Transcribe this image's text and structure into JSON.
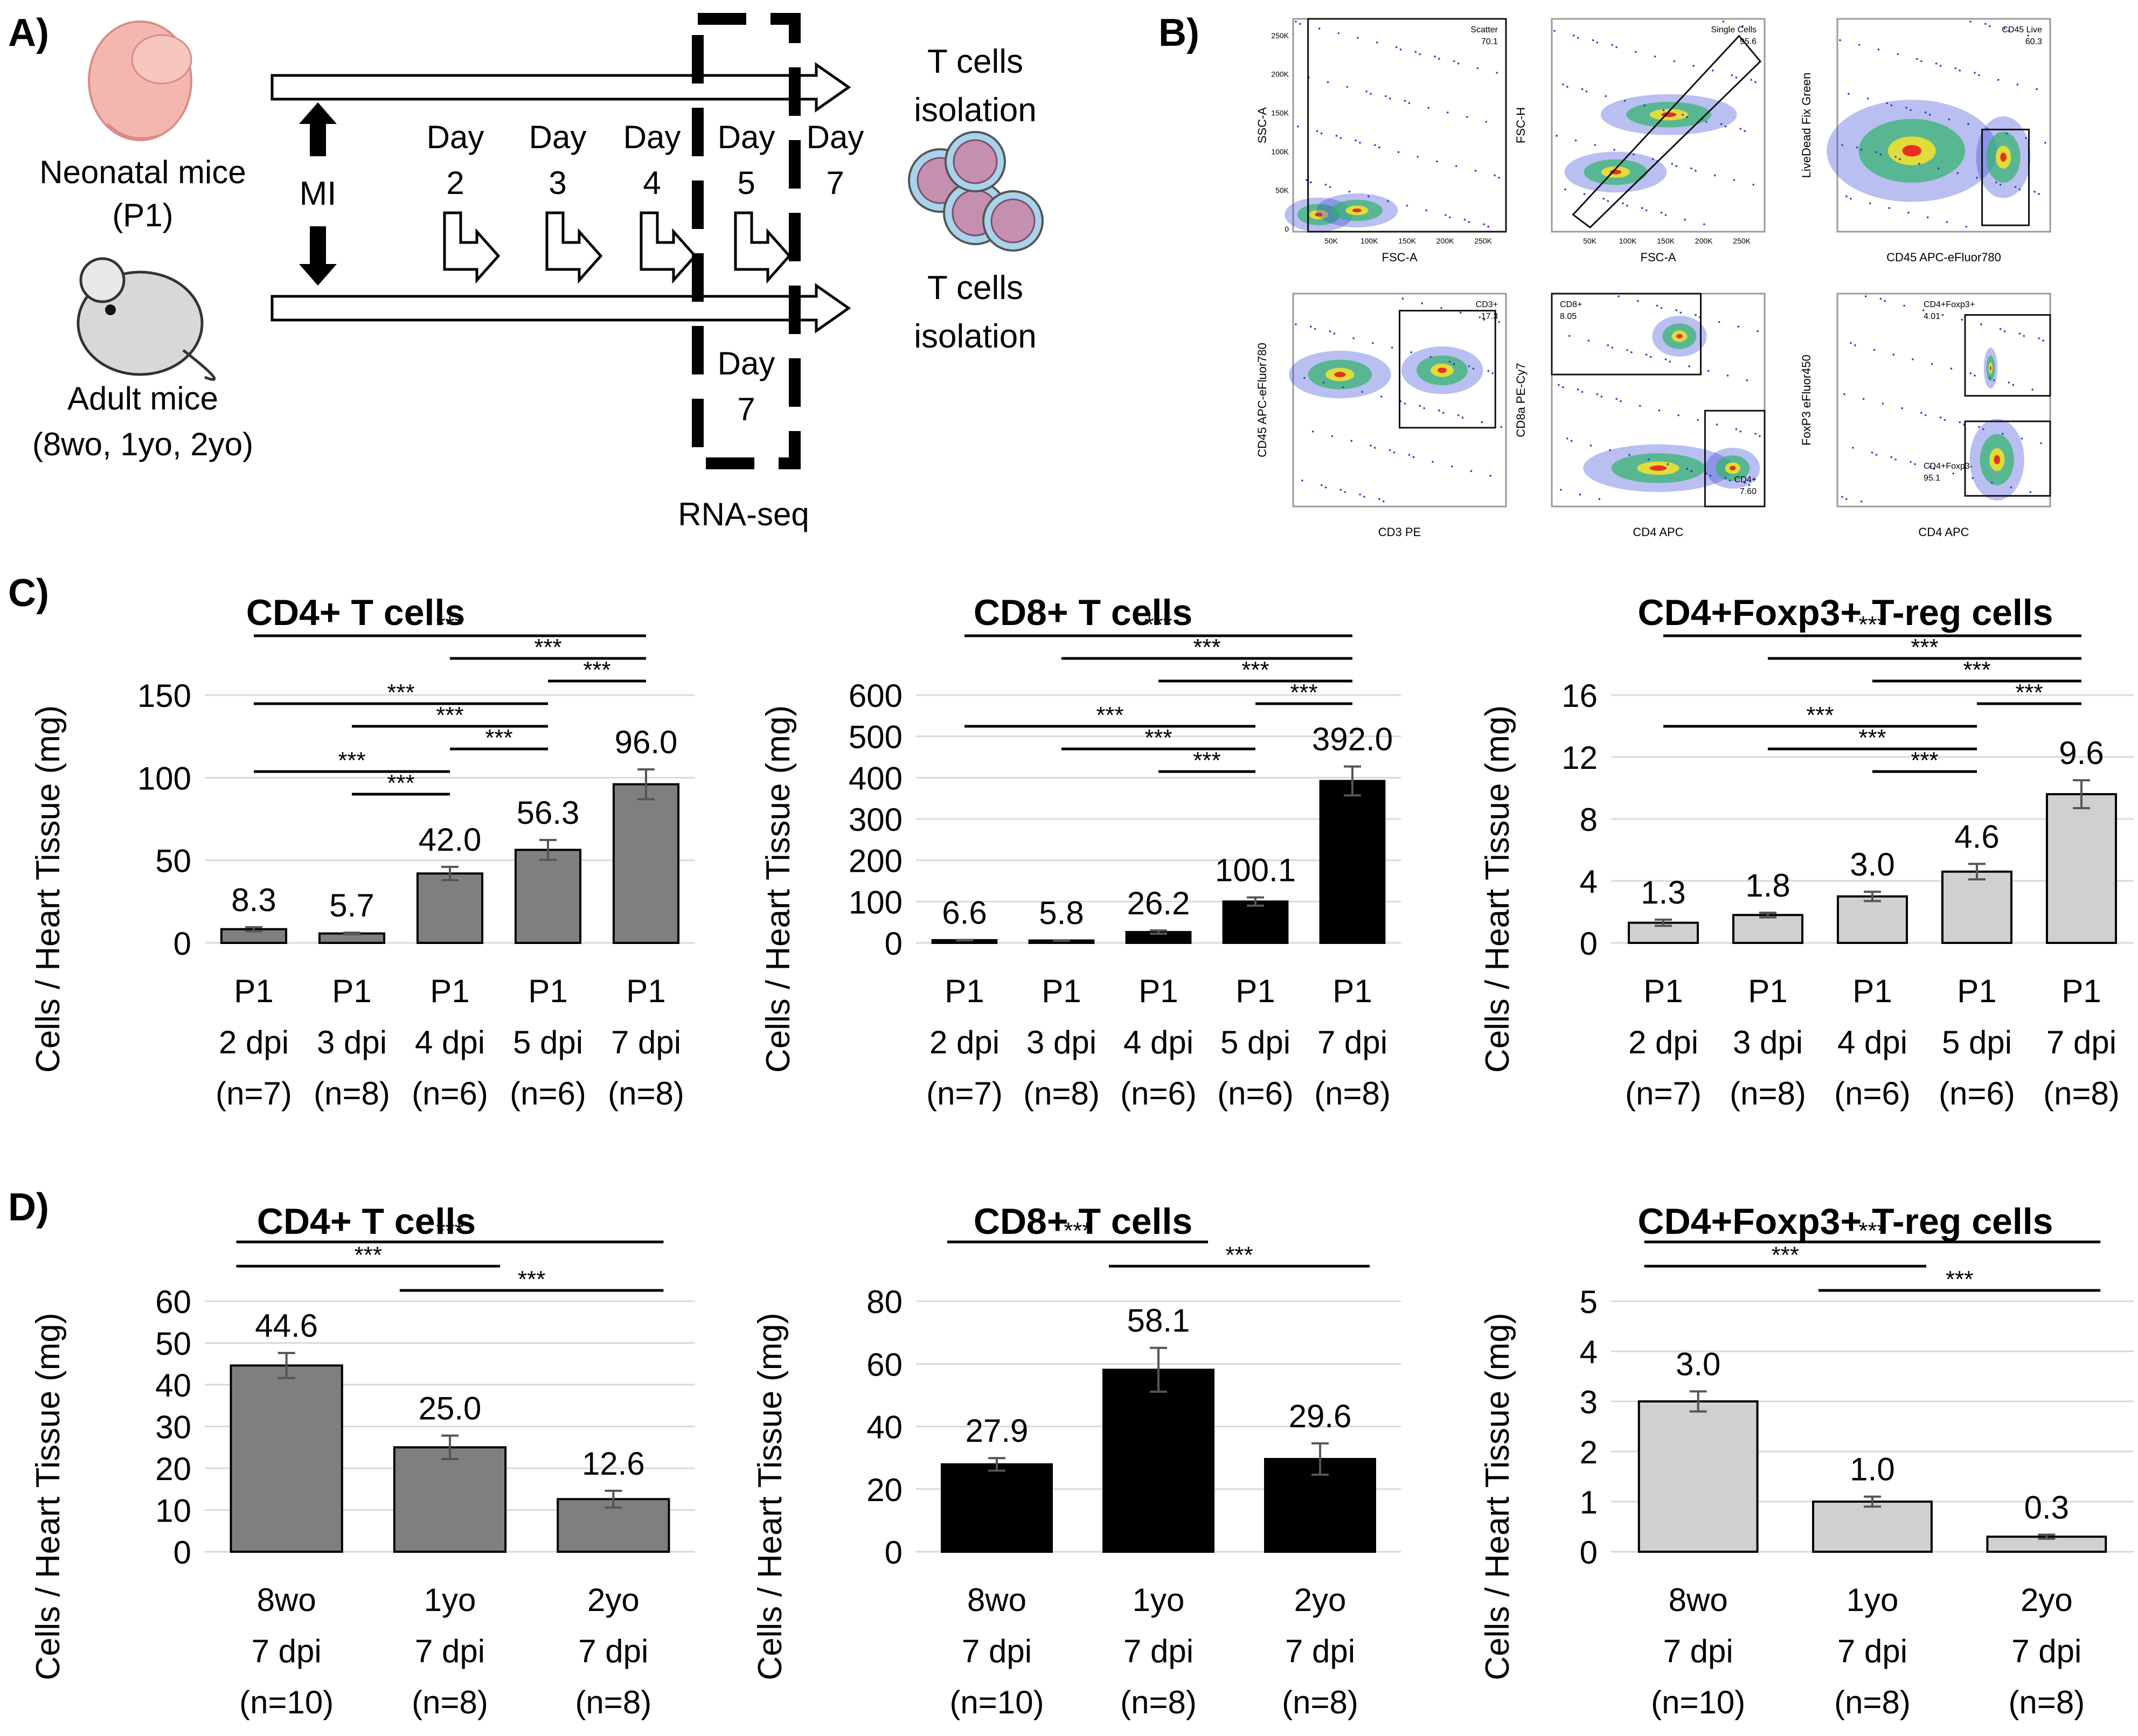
{
  "panels": {
    "a": "A)",
    "b": "B)",
    "c": "C)",
    "d": "D)"
  },
  "timeline": {
    "neonatal_label": "Neonatal mice",
    "neonatal_sub": "(P1)",
    "adult_label": "Adult mice",
    "adult_sub": "(8wo, 1yo, 2yo)",
    "mi": "MI",
    "day_word": "Day",
    "days_top": [
      "2",
      "3",
      "4",
      "5",
      "7"
    ],
    "day_bottom": "7",
    "isolation_top": [
      "T cells",
      "isolation"
    ],
    "isolation_bottom": [
      "T cells",
      "isolation"
    ],
    "rna_seq": "RNA-seq"
  },
  "flow": {
    "plots": [
      {
        "xlabel": "FSC-A",
        "ylabel": "SSC-A",
        "gate_name": "Scatter",
        "gate_value": "70.1",
        "xticks": [
          "50K",
          "100K",
          "150K",
          "200K",
          "250K"
        ],
        "yticks": [
          "0",
          "50K",
          "100K",
          "150K",
          "200K",
          "250K"
        ]
      },
      {
        "xlabel": "FSC-A",
        "ylabel": "FSC-H",
        "gate_name": "Single Cells",
        "gate_value": "95.6",
        "xticks": [
          "50K",
          "100K",
          "150K",
          "200K",
          "250K"
        ],
        "yticks": []
      },
      {
        "xlabel": "CD45 APC-eFluor780",
        "ylabel": "LiveDead Fix Green",
        "gate_name": "CD45 Live",
        "gate_value": "60.3",
        "xticks": [],
        "yticks": []
      },
      {
        "xlabel": "CD3 PE",
        "ylabel": "CD45 APC-eFluor780",
        "gate_name": "CD3+",
        "gate_value": "17.3",
        "xticks": [],
        "yticks": []
      },
      {
        "xlabel": "CD4 APC",
        "ylabel": "CD8a PE-Cy7",
        "gate_name": "CD8+",
        "gate_value": "8.05",
        "gate2_name": "CD4+",
        "gate2_value": "7.60",
        "xticks": [],
        "yticks": []
      },
      {
        "xlabel": "CD4 APC",
        "ylabel": "FoxP3 eFluor450",
        "gate_name": "CD4+Foxp3+",
        "gate_value": "4.01",
        "gate2_name": "CD4+Foxp3-",
        "gate2_value": "95.1",
        "xticks": [],
        "yticks": []
      }
    ]
  },
  "chart_data": [
    {
      "type": "bar",
      "title": "CD4+ T cells",
      "ylabel": "Cells / Heart Tissue (mg)",
      "ylim": [
        0,
        150
      ],
      "yticks": [
        0,
        50,
        100,
        150
      ],
      "color": "#7f7f7f",
      "errors": [
        1.2,
        0.5,
        4.0,
        6.0,
        9.0
      ],
      "categories": [
        [
          "P1",
          "2 dpi",
          "(n=7)"
        ],
        [
          "P1",
          "3 dpi",
          "(n=8)"
        ],
        [
          "P1",
          "4 dpi",
          "(n=6)"
        ],
        [
          "P1",
          "5 dpi",
          "(n=6)"
        ],
        [
          "P1",
          "7 dpi",
          "(n=8)"
        ]
      ],
      "values": [
        8.3,
        5.7,
        42.0,
        56.3,
        96.0
      ],
      "value_labels": [
        "8.3",
        "5.7",
        "42.0",
        "56.3",
        "96.0"
      ],
      "significance": [
        [
          0,
          4,
          "***"
        ],
        [
          2,
          4,
          "***"
        ],
        [
          3,
          4,
          "***"
        ],
        [
          0,
          3,
          "***"
        ],
        [
          1,
          3,
          "***"
        ],
        [
          2,
          3,
          "***"
        ],
        [
          0,
          2,
          "***"
        ],
        [
          1,
          2,
          "***"
        ]
      ]
    },
    {
      "type": "bar",
      "title": "CD8+ T cells",
      "ylabel": "Cells / Heart Tissue (mg)",
      "ylim": [
        0,
        600
      ],
      "yticks": [
        0,
        100,
        200,
        300,
        400,
        500,
        600
      ],
      "color": "#000000",
      "errors": [
        0.6,
        0.5,
        4.0,
        10.0,
        35.0
      ],
      "categories": [
        [
          "P1",
          "2 dpi",
          "(n=7)"
        ],
        [
          "P1",
          "3 dpi",
          "(n=8)"
        ],
        [
          "P1",
          "4 dpi",
          "(n=6)"
        ],
        [
          "P1",
          "5 dpi",
          "(n=6)"
        ],
        [
          "P1",
          "7 dpi",
          "(n=8)"
        ]
      ],
      "values": [
        6.6,
        5.8,
        26.2,
        100.1,
        392.0
      ],
      "value_labels": [
        "6.6",
        "5.8",
        "26.2",
        "100.1",
        "392.0"
      ],
      "significance": [
        [
          0,
          4,
          "***"
        ],
        [
          1,
          4,
          "***"
        ],
        [
          2,
          4,
          "***"
        ],
        [
          3,
          4,
          "***"
        ],
        [
          0,
          3,
          "***"
        ],
        [
          1,
          3,
          "***"
        ],
        [
          2,
          3,
          "***"
        ]
      ]
    },
    {
      "type": "bar",
      "title": "CD4+Foxp3+ T-reg cells",
      "ylabel": "Cells / Heart Tissue (mg)",
      "ylim": [
        0,
        16
      ],
      "yticks": [
        0,
        4,
        8,
        12,
        16
      ],
      "color": "#d0d0d0",
      "errors": [
        0.2,
        0.15,
        0.3,
        0.5,
        0.9
      ],
      "categories": [
        [
          "P1",
          "2 dpi",
          "(n=7)"
        ],
        [
          "P1",
          "3 dpi",
          "(n=8)"
        ],
        [
          "P1",
          "4 dpi",
          "(n=6)"
        ],
        [
          "P1",
          "5 dpi",
          "(n=6)"
        ],
        [
          "P1",
          "7 dpi",
          "(n=8)"
        ]
      ],
      "values": [
        1.3,
        1.8,
        3.0,
        4.6,
        9.6
      ],
      "value_labels": [
        "1.3",
        "1.8",
        "3.0",
        "4.6",
        "9.6"
      ],
      "significance": [
        [
          0,
          4,
          "***"
        ],
        [
          1,
          4,
          "***"
        ],
        [
          2,
          4,
          "***"
        ],
        [
          3,
          4,
          "***"
        ],
        [
          0,
          3,
          "***"
        ],
        [
          1,
          3,
          "***"
        ],
        [
          2,
          3,
          "***"
        ]
      ]
    },
    {
      "type": "bar",
      "title": "CD4+ T cells",
      "ylabel": "Cells / Heart Tissue (mg)",
      "ylim": [
        0,
        60
      ],
      "yticks": [
        0,
        10,
        20,
        30,
        40,
        50,
        60
      ],
      "color": "#7f7f7f",
      "errors": [
        3.0,
        2.8,
        2.0
      ],
      "categories": [
        [
          "8wo",
          "7 dpi",
          "(n=10)"
        ],
        [
          "1yo",
          "7 dpi",
          "(n=8)"
        ],
        [
          "2yo",
          "7 dpi",
          "(n=8)"
        ]
      ],
      "values": [
        44.6,
        25.0,
        12.6
      ],
      "value_labels": [
        "44.6",
        "25.0",
        "12.6"
      ],
      "significance": [
        [
          0,
          2,
          "***"
        ],
        [
          0,
          1,
          "***"
        ],
        [
          1,
          2,
          "***"
        ]
      ]
    },
    {
      "type": "bar",
      "title": "CD8+ T cells",
      "ylabel": "Cells / Heart Tissue (mg)",
      "ylim": [
        0,
        80
      ],
      "yticks": [
        0,
        20,
        40,
        60,
        80
      ],
      "color": "#000000",
      "errors": [
        2.0,
        7.0,
        5.0
      ],
      "categories": [
        [
          "8wo",
          "7 dpi",
          "(n=10)"
        ],
        [
          "1yo",
          "7 dpi",
          "(n=8)"
        ],
        [
          "2yo",
          "7 dpi",
          "(n=8)"
        ]
      ],
      "values": [
        27.9,
        58.1,
        29.6
      ],
      "value_labels": [
        "27.9",
        "58.1",
        "29.6"
      ],
      "significance": [
        [
          0,
          1,
          "***"
        ],
        [
          1,
          2,
          "***"
        ]
      ]
    },
    {
      "type": "bar",
      "title": "CD4+Foxp3+ T-reg cells",
      "ylabel": "Cells / Heart Tissue (mg)",
      "ylim": [
        0,
        5
      ],
      "yticks": [
        0,
        1,
        2,
        3,
        4,
        5
      ],
      "color": "#d0d0d0",
      "errors": [
        0.2,
        0.1,
        0.04
      ],
      "categories": [
        [
          "8wo",
          "7 dpi",
          "(n=10)"
        ],
        [
          "1yo",
          "7 dpi",
          "(n=8)"
        ],
        [
          "2yo",
          "7 dpi",
          "(n=8)"
        ]
      ],
      "values": [
        3.0,
        1.0,
        0.3
      ],
      "value_labels": [
        "3.0",
        "1.0",
        "0.3"
      ],
      "significance": [
        [
          0,
          2,
          "***"
        ],
        [
          0,
          1,
          "***"
        ],
        [
          1,
          2,
          "***"
        ]
      ]
    }
  ]
}
